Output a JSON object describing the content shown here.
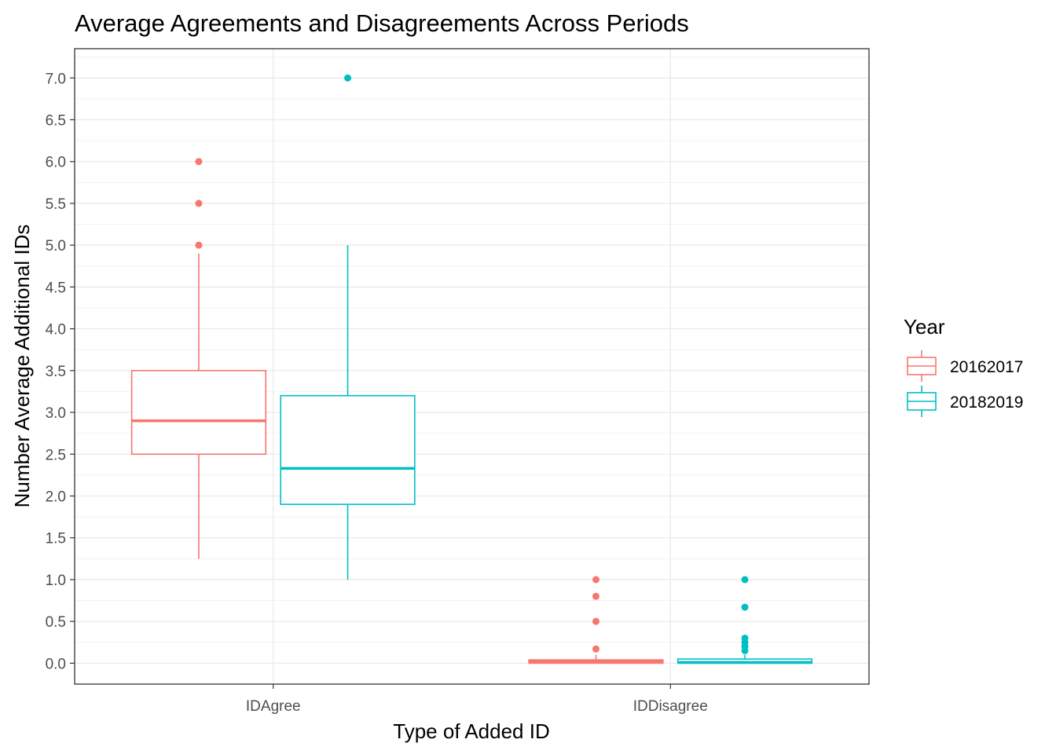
{
  "chart_data": {
    "type": "boxplot",
    "title": "Average Agreements and Disagreements Across Periods",
    "xlabel": "Type of Added ID",
    "ylabel": "Number Average Additional IDs",
    "categories": [
      "IDAgree",
      "IDDisagree"
    ],
    "ylim": [
      -0.25,
      7.35
    ],
    "y_ticks": [
      "0.0",
      "0.5",
      "1.0",
      "1.5",
      "2.0",
      "2.5",
      "3.0",
      "3.5",
      "4.0",
      "4.5",
      "5.0",
      "5.5",
      "6.0",
      "6.5",
      "7.0"
    ],
    "grid": true,
    "legend": {
      "title": "Year",
      "position": "right"
    },
    "series": [
      {
        "name": "20162017",
        "color": "#F8766D",
        "boxes": [
          {
            "category": "IDAgree",
            "min": 1.25,
            "q1": 2.5,
            "median": 2.9,
            "q3": 3.5,
            "max": 4.9,
            "outliers": [
              5.0,
              5.5,
              6.0
            ]
          },
          {
            "category": "IDDisagree",
            "min": 0.0,
            "q1": 0.0,
            "median": 0.02,
            "q3": 0.04,
            "max": 0.1,
            "outliers": [
              0.17,
              0.5,
              0.8,
              1.0
            ]
          }
        ]
      },
      {
        "name": "20182019",
        "color": "#00BFC4",
        "boxes": [
          {
            "category": "IDAgree",
            "min": 1.0,
            "q1": 1.9,
            "median": 2.33,
            "q3": 3.2,
            "max": 5.0,
            "outliers": [
              7.0
            ]
          },
          {
            "category": "IDDisagree",
            "min": 0.0,
            "q1": 0.0,
            "median": 0.01,
            "q3": 0.05,
            "max": 0.1,
            "outliers": [
              0.15,
              0.2,
              0.25,
              0.3,
              0.67,
              1.0
            ]
          }
        ]
      }
    ]
  }
}
